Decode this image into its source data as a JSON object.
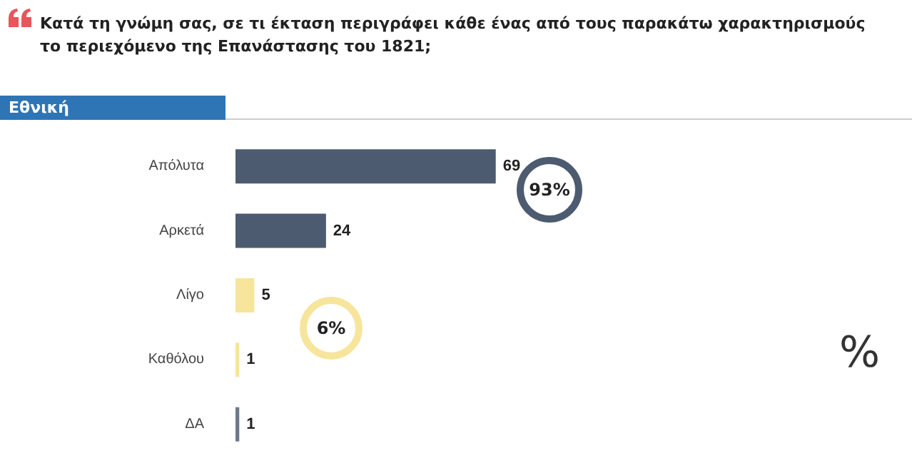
{
  "chart_data": {
    "type": "bar",
    "orientation": "horizontal",
    "title": "Κατά τη γνώμη σας, σε τι έκταση περιγράφει κάθε ένας από τους παρακάτω χαρακτηρισμούς το περιεχόμενο της Επανάστασης του 1821;",
    "subtitle": "Εθνική",
    "categories": [
      "Απόλυτα",
      "Αρκετά",
      "Λίγο",
      "Καθόλου",
      "ΔΑ"
    ],
    "values": [
      69,
      24,
      5,
      1,
      1
    ],
    "colors": [
      "#4d5b70",
      "#4d5b70",
      "#f6e59b",
      "#f6e59b",
      "#6e7888"
    ],
    "data_labels": true,
    "grid": false,
    "annotations": [
      "93%",
      "6%",
      "%"
    ]
  }
}
